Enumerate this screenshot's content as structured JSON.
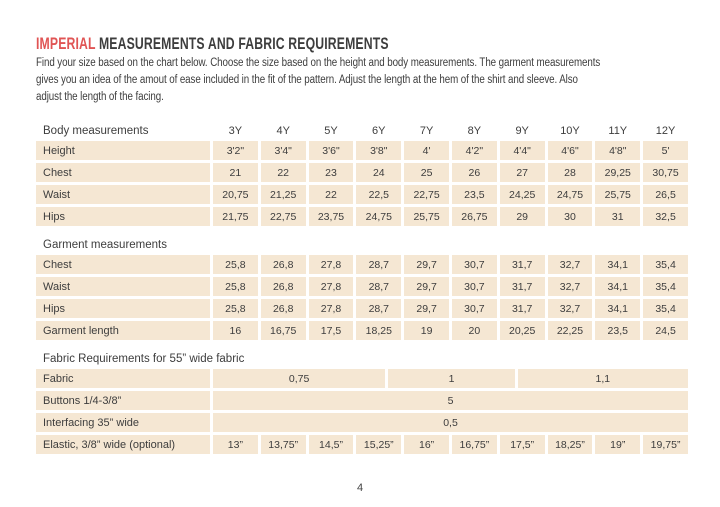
{
  "page": {
    "title_accent": "IMPERIAL",
    "title_rest": " MEASUREMENTS AND FABRIC REQUIREMENTS",
    "intro_lines": [
      "Find your size based on the chart below. Choose the size based on the height and body measurements. The garment measurements",
      "gives you an idea of the amout of ease included in the fit of the pattern. Adjust the length at the hem of the shirt and sleeve. Also",
      "adjust the length of the facing."
    ],
    "page_number": "4"
  },
  "colors": {
    "accent": "#e05454",
    "cell_background": "#f5e7d3",
    "text": "#3d3d3d"
  },
  "table": {
    "sizes": [
      "3Y",
      "4Y",
      "5Y",
      "6Y",
      "7Y",
      "8Y",
      "9Y",
      "10Y",
      "11Y",
      "12Y"
    ],
    "sections": [
      {
        "title": "Body measurements",
        "show_sizes": true,
        "rows": [
          {
            "label": "Height",
            "values": [
              "3'2\"",
              "3'4\"",
              "3'6\"",
              "3'8\"",
              "4'",
              "4'2\"",
              "4'4\"",
              "4'6\"",
              "4'8\"",
              "5'"
            ]
          },
          {
            "label": "Chest",
            "values": [
              "21",
              "22",
              "23",
              "24",
              "25",
              "26",
              "27",
              "28",
              "29,25",
              "30,75"
            ]
          },
          {
            "label": "Waist",
            "values": [
              "20,75",
              "21,25",
              "22",
              "22,5",
              "22,75",
              "23,5",
              "24,25",
              "24,75",
              "25,75",
              "26,5"
            ]
          },
          {
            "label": "Hips",
            "values": [
              "21,75",
              "22,75",
              "23,75",
              "24,75",
              "25,75",
              "26,75",
              "29",
              "30",
              "31",
              "32,5"
            ]
          }
        ]
      },
      {
        "title": "Garment measurements",
        "show_sizes": false,
        "rows": [
          {
            "label": "Chest",
            "values": [
              "25,8",
              "26,8",
              "27,8",
              "28,7",
              "29,7",
              "30,7",
              "31,7",
              "32,7",
              "34,1",
              "35,4"
            ]
          },
          {
            "label": "Waist",
            "values": [
              "25,8",
              "26,8",
              "27,8",
              "28,7",
              "29,7",
              "30,7",
              "31,7",
              "32,7",
              "34,1",
              "35,4"
            ]
          },
          {
            "label": "Hips",
            "values": [
              "25,8",
              "26,8",
              "27,8",
              "28,7",
              "29,7",
              "30,7",
              "31,7",
              "32,7",
              "34,1",
              "35,4"
            ]
          },
          {
            "label": "Garment length",
            "values": [
              "16",
              "16,75",
              "17,5",
              "18,25",
              "19",
              "20",
              "20,25",
              "22,25",
              "23,5",
              "24,5"
            ]
          }
        ]
      },
      {
        "title": "Fabric Requirements for  55” wide fabric",
        "show_sizes": false,
        "rows": [
          {
            "label": "Fabric",
            "merged": [
              {
                "value": "0,75",
                "w": 173
              },
              {
                "value": "1",
                "w": 127
              },
              {
                "value": "1,1",
                "w": 171
              }
            ]
          },
          {
            "label": "Buttons 1/4-3/8”",
            "merged": [
              {
                "value": "5",
                "w": 1
              }
            ]
          },
          {
            "label": "Interfacing  35” wide",
            "merged": [
              {
                "value": "0,5",
                "w": 1
              }
            ]
          },
          {
            "label": "Elastic, 3/8” wide (optional)",
            "values": [
              "13”",
              "13,75”",
              "14,5”",
              "15,25”",
              "16”",
              "16,75”",
              "17,5”",
              "18,25”",
              "19”",
              "19,75”"
            ]
          }
        ]
      }
    ]
  }
}
